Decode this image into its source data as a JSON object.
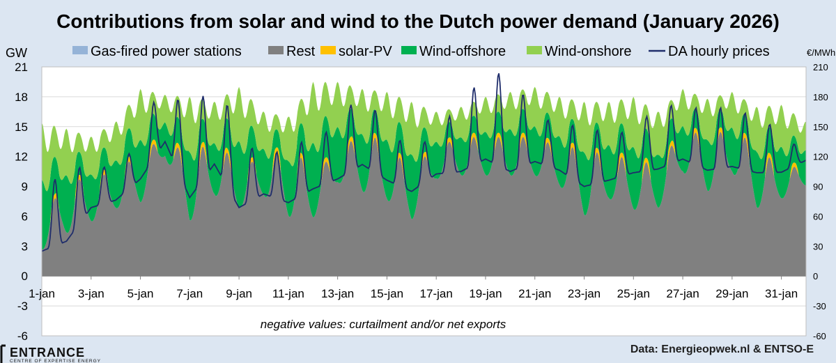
{
  "chart_data": {
    "type": "area",
    "title": "Contributions from solar and wind to the Dutch power demand (January 2026)",
    "ylabel": "GW",
    "y2label": "€/MWh",
    "ylim": [
      -6,
      21
    ],
    "y2lim": [
      -60,
      210
    ],
    "yticks": [
      21,
      18,
      15,
      12,
      9,
      6,
      3,
      0,
      -3,
      -6
    ],
    "y2ticks": [
      210,
      180,
      150,
      120,
      90,
      60,
      30,
      0,
      -30,
      -60
    ],
    "x_tick_labels": [
      "1-jan",
      "3-jan",
      "5-jan",
      "7-jan",
      "9-jan",
      "11-jan",
      "13-jan",
      "15-jan",
      "17-jan",
      "19-jan",
      "21-jan",
      "23-jan",
      "25-jan",
      "27-jan",
      "29-jan",
      "31-jan"
    ],
    "x_tick_days": [
      1,
      3,
      5,
      7,
      9,
      11,
      13,
      15,
      17,
      19,
      21,
      23,
      25,
      27,
      29,
      31
    ],
    "xlim": [
      1,
      32
    ],
    "legend_placement": "top",
    "grid": true,
    "annotation": "negative values: curtailment and/or net exports",
    "source": "Data: Energieopwek.nl & ENTSO-E",
    "series": [
      {
        "name": "Gas-fired power stations",
        "color": "#95b3d7",
        "kind": "area"
      },
      {
        "name": "Rest",
        "color": "#808080",
        "kind": "area"
      },
      {
        "name": "solar-PV",
        "color": "#ffc000",
        "kind": "area"
      },
      {
        "name": "Wind-offshore",
        "color": "#00b050",
        "kind": "area"
      },
      {
        "name": "Wind-onshore",
        "color": "#92d050",
        "kind": "area"
      },
      {
        "name": "DA hourly prices",
        "color": "#1f2d6b",
        "kind": "line",
        "axis": "right"
      }
    ],
    "daily_points": {
      "day": [
        1,
        2,
        3,
        4,
        5,
        6,
        7,
        8,
        9,
        10,
        11,
        12,
        13,
        14,
        15,
        16,
        17,
        18,
        19,
        20,
        21,
        22,
        23,
        24,
        25,
        26,
        27,
        28,
        29,
        30,
        31,
        32
      ],
      "rest_min_gw": [
        0.8,
        1.5,
        3,
        4.8,
        4.5,
        11,
        2,
        5,
        4.5,
        6,
        2.2,
        3,
        8,
        5,
        4.8,
        2.7,
        8,
        8,
        8,
        8,
        8,
        7,
        2.3,
        5.5,
        3.8,
        4.5,
        8,
        5.5,
        8,
        3.5,
        6,
        8
      ],
      "rest_max_gw": [
        6,
        9.5,
        10,
        10.5,
        12.5,
        14,
        12,
        14,
        11,
        12,
        13,
        11,
        12,
        15,
        13,
        11,
        13,
        14,
        14,
        14,
        14,
        13,
        13,
        12,
        12,
        11,
        15,
        14,
        15,
        13,
        11,
        11
      ],
      "total_peak_gw": [
        15.4,
        14.8,
        14,
        15.5,
        18.8,
        18.2,
        18,
        17.5,
        19,
        16.5,
        16,
        19.5,
        19.5,
        18.8,
        18.5,
        17.5,
        16.5,
        17,
        18,
        18.5,
        19,
        18,
        17.5,
        17.5,
        18,
        16.5,
        18.8,
        17.8,
        18.5,
        17,
        17.2,
        15.5
      ],
      "price_min_eur": [
        5,
        10,
        55,
        65,
        85,
        110,
        55,
        80,
        45,
        70,
        55,
        70,
        80,
        85,
        80,
        70,
        90,
        80,
        90,
        70,
        100,
        90,
        70,
        80,
        90,
        85,
        100,
        85,
        90,
        85,
        90,
        115
      ],
      "price_max_eur": [
        85,
        110,
        110,
        110,
        135,
        210,
        150,
        210,
        140,
        120,
        130,
        140,
        150,
        193,
        145,
        130,
        140,
        180,
        200,
        210,
        160,
        155,
        150,
        145,
        145,
        175,
        170,
        170,
        170,
        160,
        147,
        120
      ]
    }
  }
}
